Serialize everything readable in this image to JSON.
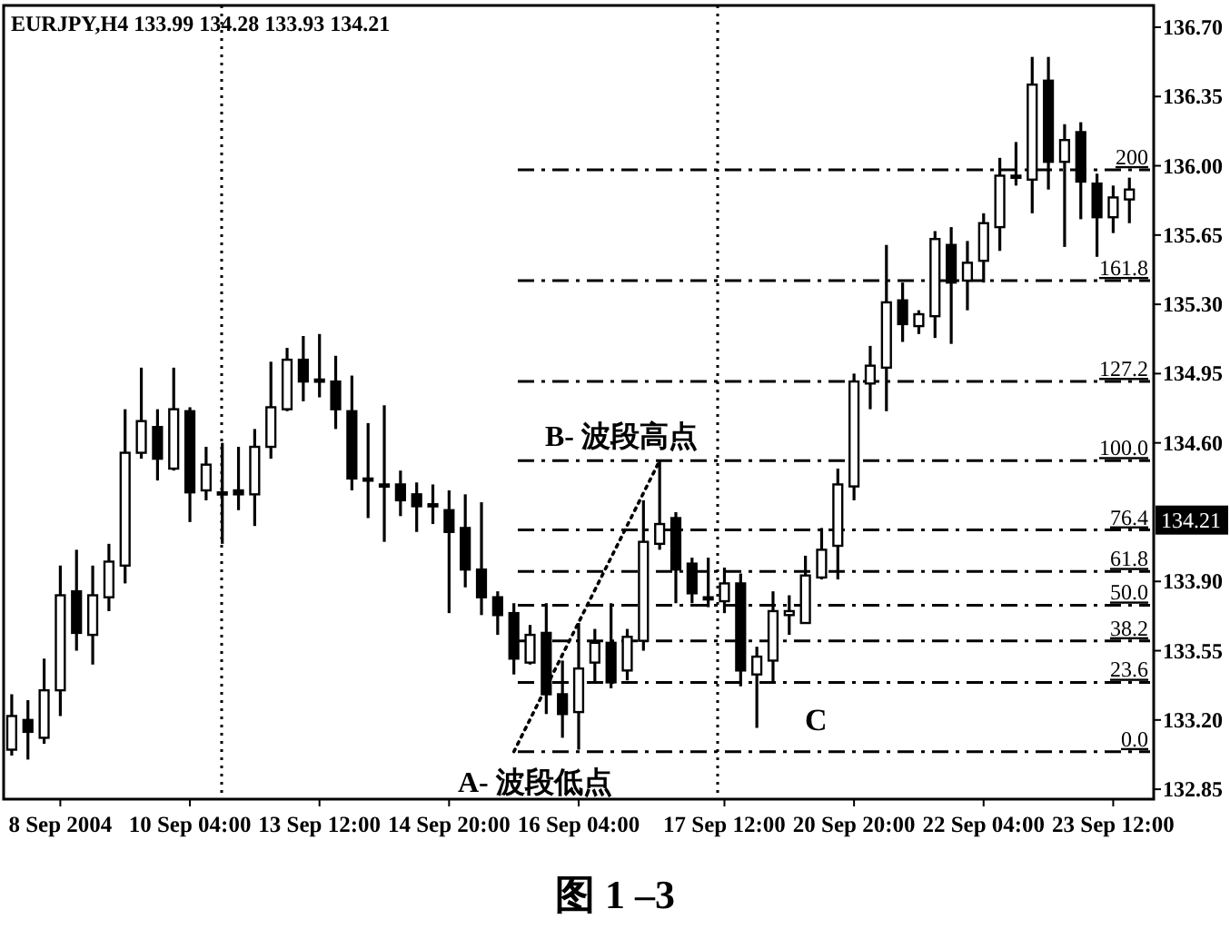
{
  "chart_data": {
    "type": "candlestick",
    "title": "EURJPY,H4 133.99 134.28 133.93 134.21",
    "categories": [
      null,
      null,
      null,
      "8 Sep 2004",
      null,
      null,
      null,
      null,
      null,
      null,
      null,
      "10 Sep 04:00",
      null,
      null,
      null,
      null,
      null,
      null,
      null,
      "13 Sep 12:00",
      null,
      null,
      null,
      null,
      null,
      null,
      null,
      "14 Sep 20:00",
      null,
      null,
      null,
      null,
      null,
      null,
      null,
      "16 Sep 04:00",
      null,
      null,
      null,
      null,
      null,
      null,
      null,
      null,
      "17 Sep 12:00",
      null,
      null,
      null,
      null,
      null,
      null,
      null,
      "20 Sep 20:00",
      null,
      null,
      null,
      null,
      null,
      null,
      null,
      "22 Sep 04:00",
      null,
      null,
      null,
      null,
      null,
      null,
      null,
      "23 Sep 12:00",
      null
    ],
    "ohlc": [
      [
        133.05,
        133.33,
        133.02,
        133.22
      ],
      [
        133.2,
        133.3,
        133.0,
        133.14
      ],
      [
        133.11,
        133.51,
        133.08,
        133.35
      ],
      [
        133.35,
        133.98,
        133.22,
        133.83
      ],
      [
        133.85,
        134.06,
        133.55,
        133.64
      ],
      [
        133.63,
        133.98,
        133.48,
        133.83
      ],
      [
        133.82,
        134.09,
        133.75,
        134.0
      ],
      [
        133.98,
        134.77,
        133.89,
        134.55
      ],
      [
        134.55,
        134.98,
        134.52,
        134.71
      ],
      [
        134.68,
        134.77,
        134.41,
        134.52
      ],
      [
        134.47,
        134.98,
        134.46,
        134.77
      ],
      [
        134.76,
        134.78,
        134.2,
        134.35
      ],
      [
        134.36,
        134.58,
        134.31,
        134.49
      ],
      [
        134.35,
        134.6,
        134.09,
        134.34
      ],
      [
        134.36,
        134.58,
        134.26,
        134.34
      ],
      [
        134.34,
        134.67,
        134.18,
        134.58
      ],
      [
        134.58,
        135.01,
        134.52,
        134.78
      ],
      [
        134.77,
        135.08,
        134.76,
        135.02
      ],
      [
        135.02,
        135.14,
        134.81,
        134.91
      ],
      [
        134.92,
        135.15,
        134.83,
        134.91
      ],
      [
        134.91,
        135.04,
        134.67,
        134.77
      ],
      [
        134.76,
        134.94,
        134.36,
        134.42
      ],
      [
        134.42,
        134.7,
        134.22,
        134.41
      ],
      [
        134.39,
        134.79,
        134.1,
        134.38
      ],
      [
        134.39,
        134.46,
        134.23,
        134.31
      ],
      [
        134.34,
        134.4,
        134.15,
        134.28
      ],
      [
        134.29,
        134.39,
        134.19,
        134.28
      ],
      [
        134.26,
        134.36,
        133.74,
        134.15
      ],
      [
        134.17,
        134.34,
        133.87,
        133.96
      ],
      [
        133.96,
        134.3,
        133.73,
        133.82
      ],
      [
        133.82,
        133.85,
        133.63,
        133.73
      ],
      [
        133.74,
        133.79,
        133.43,
        133.51
      ],
      [
        133.49,
        133.68,
        133.48,
        133.63
      ],
      [
        133.64,
        133.79,
        133.23,
        133.33
      ],
      [
        133.33,
        133.5,
        133.11,
        133.23
      ],
      [
        133.24,
        133.69,
        133.05,
        133.46
      ],
      [
        133.49,
        133.66,
        133.39,
        133.59
      ],
      [
        133.59,
        133.79,
        133.36,
        133.39
      ],
      [
        133.45,
        133.66,
        133.4,
        133.62
      ],
      [
        133.6,
        134.31,
        133.55,
        134.1
      ],
      [
        134.09,
        134.51,
        134.06,
        134.19
      ],
      [
        134.22,
        134.25,
        133.79,
        133.96
      ],
      [
        133.99,
        134.02,
        133.79,
        133.84
      ],
      [
        133.82,
        134.02,
        133.77,
        133.81
      ],
      [
        133.8,
        133.97,
        133.74,
        133.89
      ],
      [
        133.89,
        133.94,
        133.37,
        133.45
      ],
      [
        133.43,
        133.57,
        133.16,
        133.52
      ],
      [
        133.5,
        133.85,
        133.39,
        133.75
      ],
      [
        133.73,
        133.83,
        133.63,
        133.75
      ],
      [
        133.69,
        134.03,
        133.69,
        133.93
      ],
      [
        133.92,
        134.17,
        133.91,
        134.06
      ],
      [
        134.08,
        134.47,
        133.91,
        134.39
      ],
      [
        134.38,
        134.95,
        134.31,
        134.91
      ],
      [
        134.9,
        135.09,
        134.77,
        134.99
      ],
      [
        134.98,
        135.6,
        134.76,
        135.31
      ],
      [
        135.32,
        135.41,
        135.11,
        135.2
      ],
      [
        135.19,
        135.27,
        135.15,
        135.25
      ],
      [
        135.24,
        135.67,
        135.13,
        135.63
      ],
      [
        135.6,
        135.69,
        135.1,
        135.41
      ],
      [
        135.42,
        135.62,
        135.27,
        135.51
      ],
      [
        135.52,
        135.76,
        135.41,
        135.71
      ],
      [
        135.69,
        136.04,
        135.57,
        135.95
      ],
      [
        135.94,
        136.12,
        135.9,
        135.95
      ],
      [
        135.93,
        136.55,
        135.76,
        136.41
      ],
      [
        136.43,
        136.55,
        135.88,
        136.02
      ],
      [
        136.02,
        136.21,
        135.59,
        136.13
      ],
      [
        136.17,
        136.22,
        135.73,
        135.92
      ],
      [
        135.91,
        135.96,
        135.54,
        135.74
      ],
      [
        135.74,
        135.9,
        135.66,
        135.84
      ],
      [
        135.83,
        135.94,
        135.71,
        135.88
      ]
    ],
    "series": [
      {
        "type": "line",
        "values": [
          null,
          null,
          null,
          null,
          null,
          null,
          null,
          null,
          null,
          null,
          null,
          null,
          null,
          null,
          null,
          null,
          null,
          null,
          null,
          null,
          null,
          null,
          null,
          null,
          null,
          null,
          null,
          null,
          null,
          null,
          null,
          133.04,
          null,
          null,
          null,
          null,
          null,
          null,
          null,
          null,
          134.51,
          null,
          null,
          null,
          null,
          null,
          null,
          null,
          null,
          null,
          null,
          null,
          null,
          null,
          null,
          null,
          null,
          null,
          null,
          null,
          null,
          null,
          null,
          null,
          null,
          null,
          null,
          null,
          null,
          null
        ],
        "line_style": "dotted",
        "color": "#000000"
      }
    ],
    "ylim": [
      132.8,
      136.81
    ],
    "yticks": [
      132.85,
      {
        "value": 133.2,
        "label": "133.20"
      },
      133.55,
      {
        "value": 133.9,
        "label": "133.90"
      },
      {
        "value": 134.6,
        "label": "134.60"
      },
      134.95,
      {
        "value": 135.3,
        "label": "135.30"
      },
      135.65,
      {
        "value": 136.0,
        "label": "136.00"
      },
      136.35,
      {
        "value": 136.7,
        "label": "136.70"
      }
    ],
    "ref_lines": [
      {
        "axis": "y",
        "value": 133.04,
        "line_style": "dashed"
      },
      {
        "axis": "y",
        "value": 133.39,
        "line_style": "dashed"
      },
      {
        "axis": "y",
        "value": 133.6,
        "line_style": "dashed"
      },
      {
        "axis": "y",
        "value": 133.78,
        "line_style": "dashed"
      },
      {
        "axis": "y",
        "value": 133.95,
        "line_style": "dashed"
      },
      {
        "axis": "y",
        "value": 134.16,
        "line_style": "dashed"
      },
      {
        "axis": "y",
        "value": 134.51,
        "line_style": "dashed"
      },
      {
        "axis": "y",
        "value": 134.91,
        "line_style": "dashed"
      },
      {
        "axis": "y",
        "value": 135.42,
        "line_style": "dashed"
      },
      {
        "axis": "y",
        "value": 135.98,
        "line_style": "dashed"
      }
    ],
    "annotations": [
      {
        "text": "B- 波段高点",
        "y": 134.51
      },
      {
        "text": "A- 波段低点",
        "y": 133.04
      },
      "C",
      {
        "text": "134.21",
        "y": 134.21
      },
      "图 1 –3",
      {
        "text": "0.0",
        "y": 133.04
      },
      {
        "text": "23.6",
        "y": 133.39
      },
      {
        "text": "38.2",
        "y": 133.6
      },
      {
        "text": "50.0",
        "y": 133.78
      },
      {
        "text": "61.8",
        "y": 133.95
      },
      {
        "text": "76.4",
        "y": 134.16
      },
      {
        "text": "100.0",
        "y": 134.51
      },
      {
        "text": "127.2",
        "y": 134.91
      },
      {
        "text": "161.8",
        "y": 135.42
      },
      {
        "text": "200",
        "y": 135.98
      }
    ]
  }
}
